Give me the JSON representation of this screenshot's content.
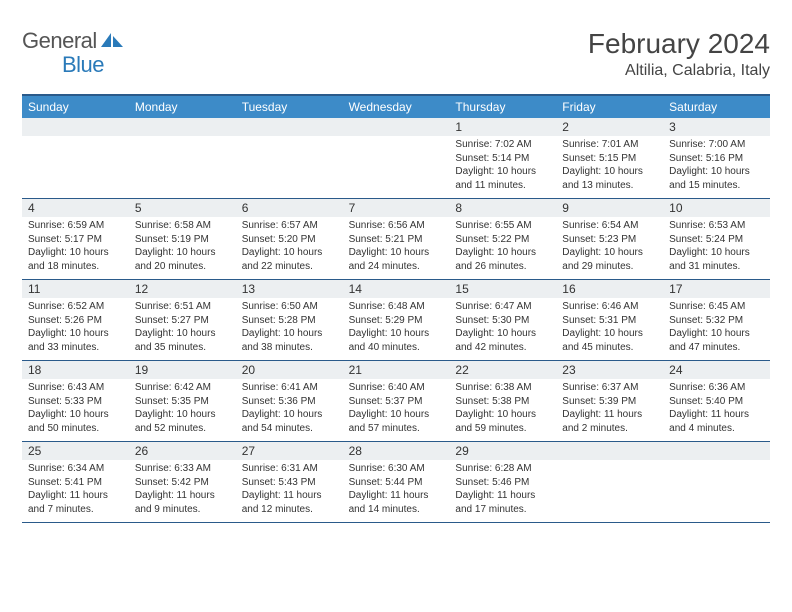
{
  "logo": {
    "word1": "General",
    "word2": "Blue"
  },
  "title": "February 2024",
  "location": "Altilia, Calabria, Italy",
  "colors": {
    "header_bar": "#3d8bc8",
    "border": "#2a5a8a",
    "daynum_bg": "#eceff1",
    "text": "#333333",
    "logo_gray": "#555555",
    "logo_blue": "#2a7ab9"
  },
  "dow": [
    "Sunday",
    "Monday",
    "Tuesday",
    "Wednesday",
    "Thursday",
    "Friday",
    "Saturday"
  ],
  "weeks": [
    [
      null,
      null,
      null,
      null,
      {
        "n": "1",
        "sr": "Sunrise: 7:02 AM",
        "ss": "Sunset: 5:14 PM",
        "d1": "Daylight: 10 hours",
        "d2": "and 11 minutes."
      },
      {
        "n": "2",
        "sr": "Sunrise: 7:01 AM",
        "ss": "Sunset: 5:15 PM",
        "d1": "Daylight: 10 hours",
        "d2": "and 13 minutes."
      },
      {
        "n": "3",
        "sr": "Sunrise: 7:00 AM",
        "ss": "Sunset: 5:16 PM",
        "d1": "Daylight: 10 hours",
        "d2": "and 15 minutes."
      }
    ],
    [
      {
        "n": "4",
        "sr": "Sunrise: 6:59 AM",
        "ss": "Sunset: 5:17 PM",
        "d1": "Daylight: 10 hours",
        "d2": "and 18 minutes."
      },
      {
        "n": "5",
        "sr": "Sunrise: 6:58 AM",
        "ss": "Sunset: 5:19 PM",
        "d1": "Daylight: 10 hours",
        "d2": "and 20 minutes."
      },
      {
        "n": "6",
        "sr": "Sunrise: 6:57 AM",
        "ss": "Sunset: 5:20 PM",
        "d1": "Daylight: 10 hours",
        "d2": "and 22 minutes."
      },
      {
        "n": "7",
        "sr": "Sunrise: 6:56 AM",
        "ss": "Sunset: 5:21 PM",
        "d1": "Daylight: 10 hours",
        "d2": "and 24 minutes."
      },
      {
        "n": "8",
        "sr": "Sunrise: 6:55 AM",
        "ss": "Sunset: 5:22 PM",
        "d1": "Daylight: 10 hours",
        "d2": "and 26 minutes."
      },
      {
        "n": "9",
        "sr": "Sunrise: 6:54 AM",
        "ss": "Sunset: 5:23 PM",
        "d1": "Daylight: 10 hours",
        "d2": "and 29 minutes."
      },
      {
        "n": "10",
        "sr": "Sunrise: 6:53 AM",
        "ss": "Sunset: 5:24 PM",
        "d1": "Daylight: 10 hours",
        "d2": "and 31 minutes."
      }
    ],
    [
      {
        "n": "11",
        "sr": "Sunrise: 6:52 AM",
        "ss": "Sunset: 5:26 PM",
        "d1": "Daylight: 10 hours",
        "d2": "and 33 minutes."
      },
      {
        "n": "12",
        "sr": "Sunrise: 6:51 AM",
        "ss": "Sunset: 5:27 PM",
        "d1": "Daylight: 10 hours",
        "d2": "and 35 minutes."
      },
      {
        "n": "13",
        "sr": "Sunrise: 6:50 AM",
        "ss": "Sunset: 5:28 PM",
        "d1": "Daylight: 10 hours",
        "d2": "and 38 minutes."
      },
      {
        "n": "14",
        "sr": "Sunrise: 6:48 AM",
        "ss": "Sunset: 5:29 PM",
        "d1": "Daylight: 10 hours",
        "d2": "and 40 minutes."
      },
      {
        "n": "15",
        "sr": "Sunrise: 6:47 AM",
        "ss": "Sunset: 5:30 PM",
        "d1": "Daylight: 10 hours",
        "d2": "and 42 minutes."
      },
      {
        "n": "16",
        "sr": "Sunrise: 6:46 AM",
        "ss": "Sunset: 5:31 PM",
        "d1": "Daylight: 10 hours",
        "d2": "and 45 minutes."
      },
      {
        "n": "17",
        "sr": "Sunrise: 6:45 AM",
        "ss": "Sunset: 5:32 PM",
        "d1": "Daylight: 10 hours",
        "d2": "and 47 minutes."
      }
    ],
    [
      {
        "n": "18",
        "sr": "Sunrise: 6:43 AM",
        "ss": "Sunset: 5:33 PM",
        "d1": "Daylight: 10 hours",
        "d2": "and 50 minutes."
      },
      {
        "n": "19",
        "sr": "Sunrise: 6:42 AM",
        "ss": "Sunset: 5:35 PM",
        "d1": "Daylight: 10 hours",
        "d2": "and 52 minutes."
      },
      {
        "n": "20",
        "sr": "Sunrise: 6:41 AM",
        "ss": "Sunset: 5:36 PM",
        "d1": "Daylight: 10 hours",
        "d2": "and 54 minutes."
      },
      {
        "n": "21",
        "sr": "Sunrise: 6:40 AM",
        "ss": "Sunset: 5:37 PM",
        "d1": "Daylight: 10 hours",
        "d2": "and 57 minutes."
      },
      {
        "n": "22",
        "sr": "Sunrise: 6:38 AM",
        "ss": "Sunset: 5:38 PM",
        "d1": "Daylight: 10 hours",
        "d2": "and 59 minutes."
      },
      {
        "n": "23",
        "sr": "Sunrise: 6:37 AM",
        "ss": "Sunset: 5:39 PM",
        "d1": "Daylight: 11 hours",
        "d2": "and 2 minutes."
      },
      {
        "n": "24",
        "sr": "Sunrise: 6:36 AM",
        "ss": "Sunset: 5:40 PM",
        "d1": "Daylight: 11 hours",
        "d2": "and 4 minutes."
      }
    ],
    [
      {
        "n": "25",
        "sr": "Sunrise: 6:34 AM",
        "ss": "Sunset: 5:41 PM",
        "d1": "Daylight: 11 hours",
        "d2": "and 7 minutes."
      },
      {
        "n": "26",
        "sr": "Sunrise: 6:33 AM",
        "ss": "Sunset: 5:42 PM",
        "d1": "Daylight: 11 hours",
        "d2": "and 9 minutes."
      },
      {
        "n": "27",
        "sr": "Sunrise: 6:31 AM",
        "ss": "Sunset: 5:43 PM",
        "d1": "Daylight: 11 hours",
        "d2": "and 12 minutes."
      },
      {
        "n": "28",
        "sr": "Sunrise: 6:30 AM",
        "ss": "Sunset: 5:44 PM",
        "d1": "Daylight: 11 hours",
        "d2": "and 14 minutes."
      },
      {
        "n": "29",
        "sr": "Sunrise: 6:28 AM",
        "ss": "Sunset: 5:46 PM",
        "d1": "Daylight: 11 hours",
        "d2": "and 17 minutes."
      },
      null,
      null
    ]
  ]
}
